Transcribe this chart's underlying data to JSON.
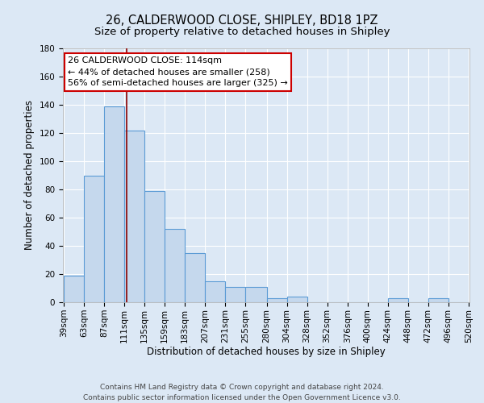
{
  "title": "26, CALDERWOOD CLOSE, SHIPLEY, BD18 1PZ",
  "subtitle": "Size of property relative to detached houses in Shipley",
  "xlabel": "Distribution of detached houses by size in Shipley",
  "ylabel": "Number of detached properties",
  "bar_edges": [
    39,
    63,
    87,
    111,
    135,
    159,
    183,
    207,
    231,
    255,
    280,
    304,
    328,
    352,
    376,
    400,
    424,
    448,
    472,
    496,
    520
  ],
  "bar_heights": [
    19,
    90,
    139,
    122,
    79,
    52,
    35,
    15,
    11,
    11,
    3,
    4,
    0,
    0,
    0,
    0,
    3,
    0,
    3,
    0
  ],
  "bar_color": "#c5d8ed",
  "bar_edge_color": "#5b9bd5",
  "property_size": 114,
  "vline_color": "#8b0000",
  "annotation_line1": "26 CALDERWOOD CLOSE: 114sqm",
  "annotation_line2": "← 44% of detached houses are smaller (258)",
  "annotation_line3": "56% of semi-detached houses are larger (325) →",
  "annotation_box_color": "#ffffff",
  "annotation_box_edge_color": "#cc0000",
  "ylim": [
    0,
    180
  ],
  "yticks": [
    0,
    20,
    40,
    60,
    80,
    100,
    120,
    140,
    160,
    180
  ],
  "background_color": "#dce8f5",
  "grid_color": "#ffffff",
  "footer_line1": "Contains HM Land Registry data © Crown copyright and database right 2024.",
  "footer_line2": "Contains public sector information licensed under the Open Government Licence v3.0.",
  "title_fontsize": 10.5,
  "subtitle_fontsize": 9.5,
  "axis_label_fontsize": 8.5,
  "tick_fontsize": 7.5,
  "annotation_fontsize": 8,
  "footer_fontsize": 6.5
}
